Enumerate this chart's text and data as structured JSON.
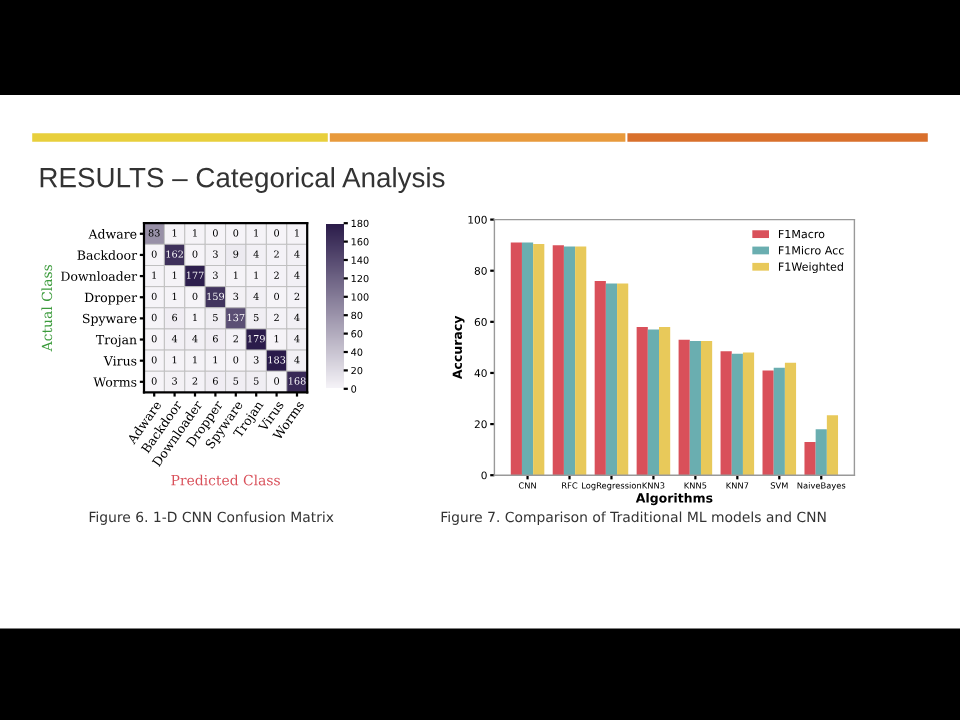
{
  "chart_data": [
    {
      "type": "heatmap",
      "title": "RESULTS – Categorical Analysis",
      "categories": [
        "Adware",
        "Backdoor",
        "Downloader",
        "Dropper",
        "Spyware",
        "Trojan",
        "Virus",
        "Worms"
      ],
      "y_categories": [
        "Adware",
        "Backdoor",
        "Downloader",
        "Dropper",
        "Spyware",
        "Trojan",
        "Virus",
        "Worms"
      ],
      "cells": [
        [
          83,
          1,
          1,
          0,
          0,
          1,
          0,
          1
        ],
        [
          0,
          162,
          0,
          3,
          9,
          4,
          2,
          4
        ],
        [
          1,
          1,
          177,
          3,
          1,
          1,
          2,
          4
        ],
        [
          0,
          1,
          0,
          159,
          3,
          4,
          0,
          2
        ],
        [
          0,
          6,
          1,
          5,
          137,
          5,
          2,
          4
        ],
        [
          0,
          4,
          4,
          6,
          2,
          179,
          1,
          4
        ],
        [
          0,
          1,
          1,
          1,
          0,
          3,
          183,
          4
        ],
        [
          0,
          3,
          2,
          6,
          5,
          5,
          0,
          168
        ]
      ],
      "data_labels": true,
      "clim": [
        0,
        180
      ],
      "cticks": [
        0,
        20,
        40,
        60,
        80,
        100,
        120,
        140,
        160,
        180
      ],
      "xlabel": "Predicted Class",
      "ylabel": "Actual Class",
      "annotations": [
        "Figure 6. 1-D CNN Confusion Matrix"
      ]
    },
    {
      "type": "bar",
      "categories": [
        "CNN",
        "RFC",
        "LogRegression",
        "KNN3",
        "KNN5",
        "KNN7",
        "SVM",
        "NaiveBayes"
      ],
      "series": [
        {
          "name": "F1Macro",
          "color": "#d9505a",
          "values": [
            91,
            90,
            76,
            58,
            53,
            48.5,
            41,
            13
          ]
        },
        {
          "name": "F1Micro Acc",
          "color": "#6aaeb0",
          "values": [
            91,
            89.5,
            75,
            57,
            52.5,
            47.5,
            42,
            18
          ]
        },
        {
          "name": "F1Weighted",
          "color": "#e8c95a",
          "values": [
            90.5,
            89.5,
            75,
            58,
            52.5,
            48,
            44,
            23.5
          ]
        }
      ],
      "ylim": [
        0,
        100
      ],
      "yticks": [
        0,
        20,
        40,
        60,
        80,
        100
      ],
      "xlabel": "Algorithms",
      "ylabel": "Accuracy",
      "legend": "top right",
      "grid": false,
      "annotations": [
        "Figure 7. Comparison of Traditional ML models and CNN"
      ]
    }
  ]
}
